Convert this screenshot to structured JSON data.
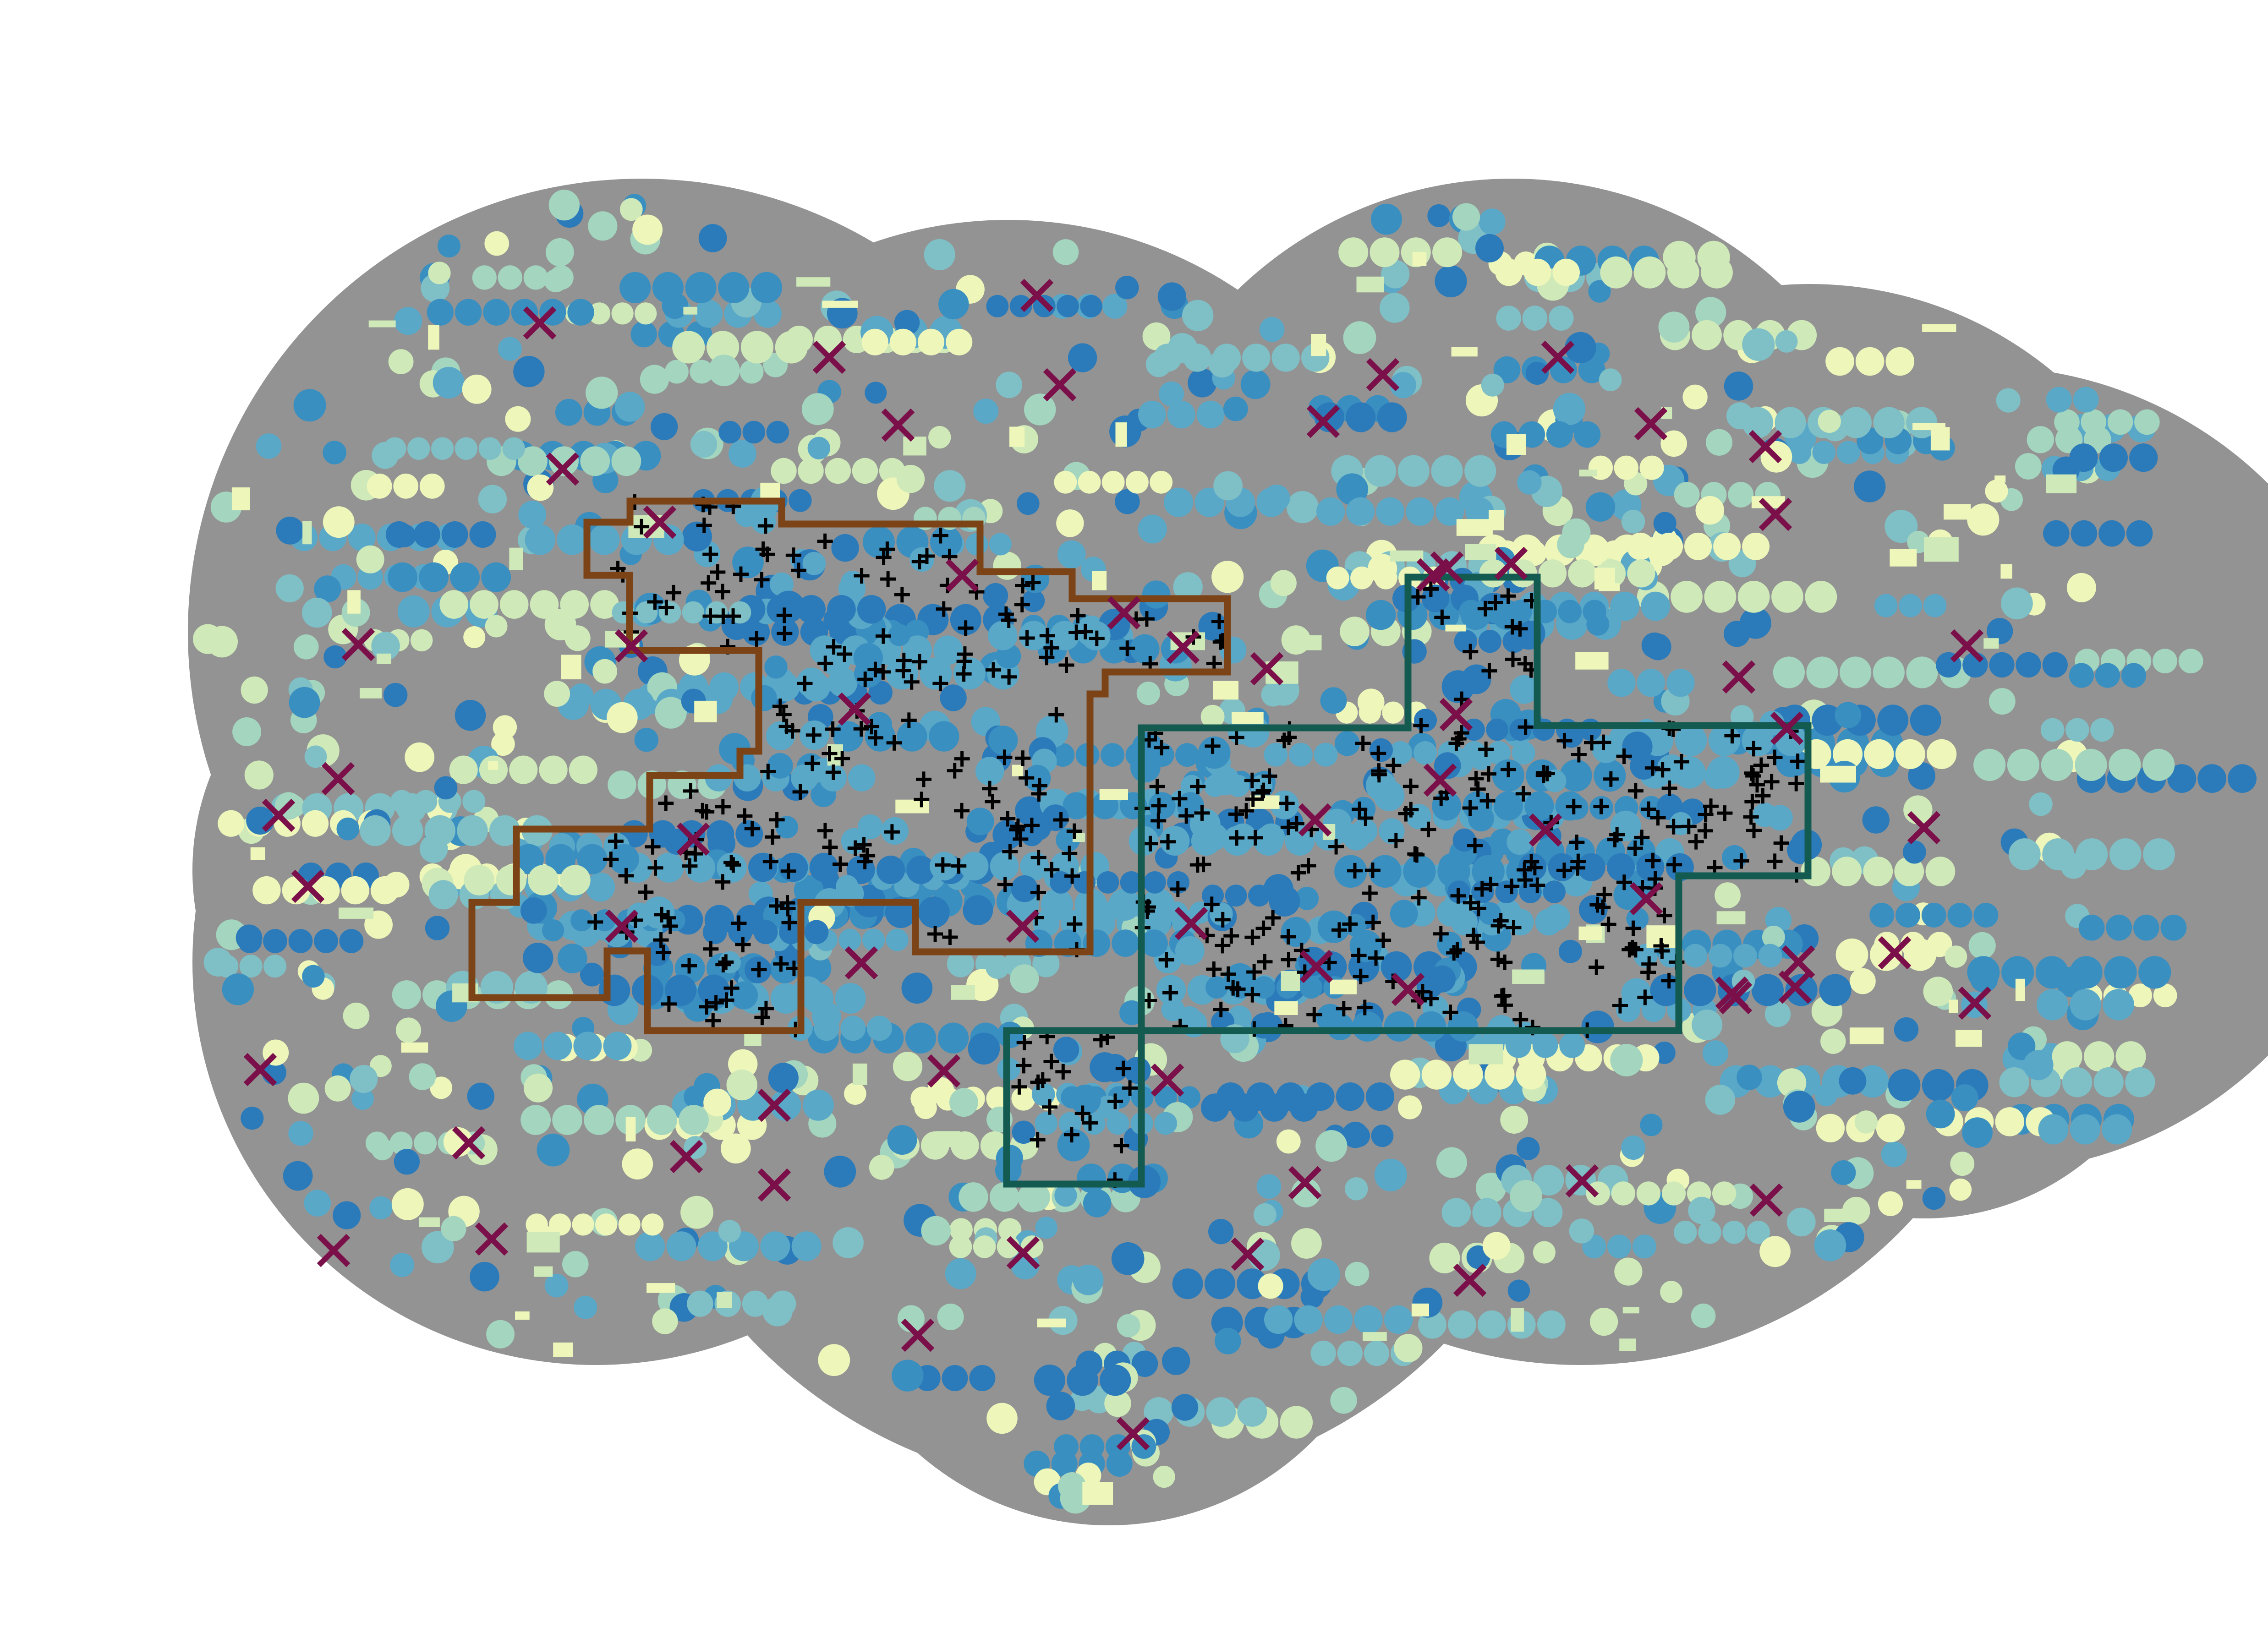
{
  "map": {
    "title": "",
    "colors": {
      "page_background": "#ffffff",
      "study_area_fill": "#939393",
      "field_palette": [
        "#2b7bba",
        "#3a8fc1",
        "#5aa8c8",
        "#7fbfc6",
        "#a3d5bf",
        "#cfeab8",
        "#eef7b9"
      ],
      "plus_marker": "#000000",
      "x_marker": "#7a0f49",
      "zone_a_outline": "#7b4316",
      "zone_b_outline": "#135a50"
    },
    "layers": [
      {
        "name": "study-area",
        "kind": "polygon-fill"
      },
      {
        "name": "irrigated-fields",
        "kind": "raster-dots"
      },
      {
        "name": "plus-points",
        "kind": "point-markers",
        "symbol": "+"
      },
      {
        "name": "x-points",
        "kind": "point-markers",
        "symbol": "x"
      },
      {
        "name": "zone-a",
        "kind": "polygon-outline"
      },
      {
        "name": "zone-b",
        "kind": "polygon-outline"
      }
    ],
    "legend": null,
    "axes": "none"
  }
}
